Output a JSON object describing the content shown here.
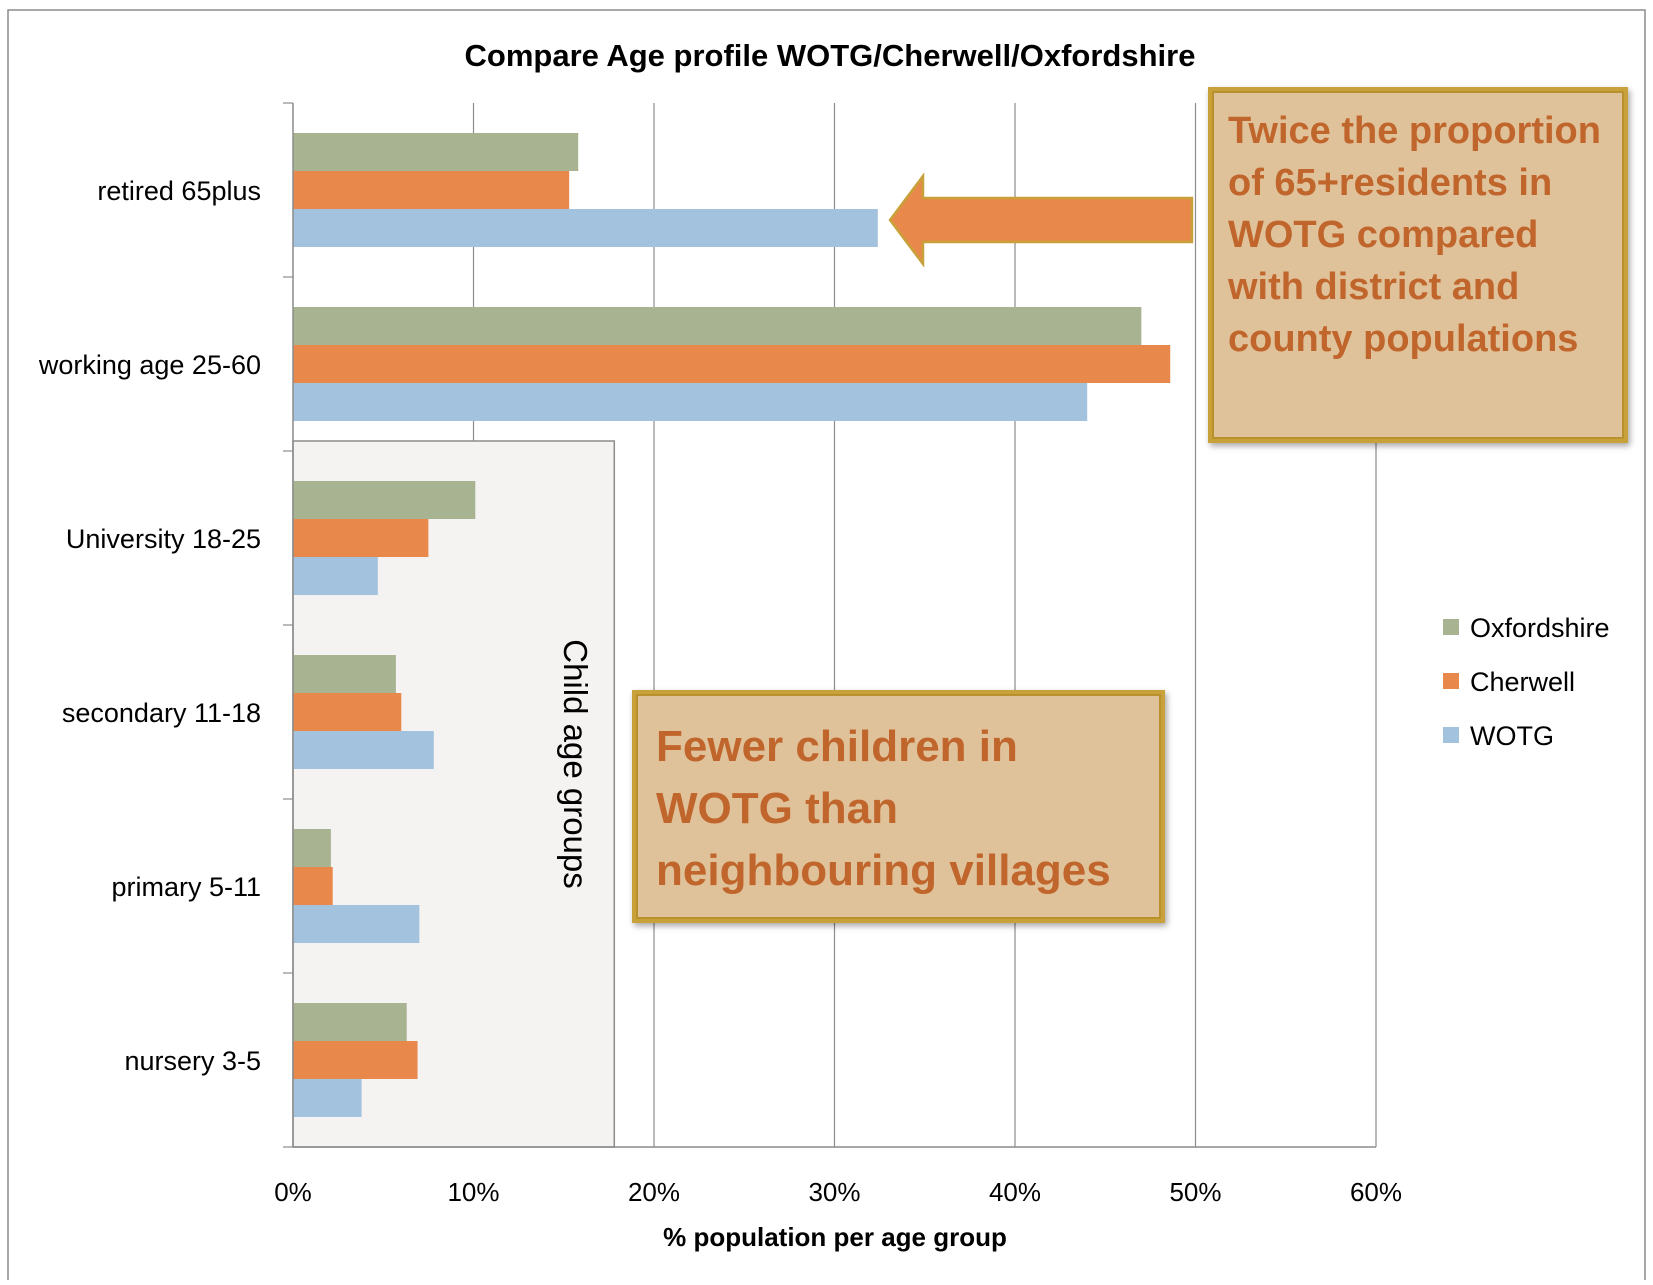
{
  "chart_data": {
    "type": "bar",
    "orientation": "horizontal",
    "title": "Compare Age profile WOTG/Cherwell/Oxfordshire",
    "xlabel": "% population per age group",
    "ylabel": "",
    "xlim": [
      0,
      60
    ],
    "x_ticks": [
      "0%",
      "10%",
      "20%",
      "30%",
      "40%",
      "50%",
      "60%"
    ],
    "grid": "vertical major gridlines",
    "categories": [
      "retired 65plus",
      "working age 25-60",
      "University 18-25",
      "secondary 11-18",
      "primary 5-11",
      "nursery 3-5"
    ],
    "series": [
      {
        "name": "Oxfordshire",
        "color": "#a8b391",
        "values": [
          15.8,
          47.0,
          10.1,
          5.7,
          2.1,
          6.3
        ]
      },
      {
        "name": "Cherwell",
        "color": "#e8884a",
        "values": [
          15.3,
          48.6,
          7.5,
          6.0,
          2.2,
          6.9
        ]
      },
      {
        "name": "WOTG",
        "color": "#a3c2de",
        "values": [
          32.4,
          44.0,
          4.7,
          7.8,
          7.0,
          3.8
        ]
      }
    ],
    "legend": {
      "position": "right",
      "order": [
        "Oxfordshire",
        "Cherwell",
        "WOTG"
      ]
    },
    "annotations": {
      "bracket_label": "Child age groups",
      "callout_top": "Twice the proportion of 65+residents in WOTG compared with district and county populations",
      "callout_bottom": "Fewer children in WOTG than neighbouring villages"
    }
  },
  "colors": {
    "callout_fill": "#e0c29a",
    "callout_border": "#c9a13a",
    "callout_text": "#c0652b",
    "arrow": "#e8884a",
    "child_box_fill": "#f5f3f2"
  }
}
